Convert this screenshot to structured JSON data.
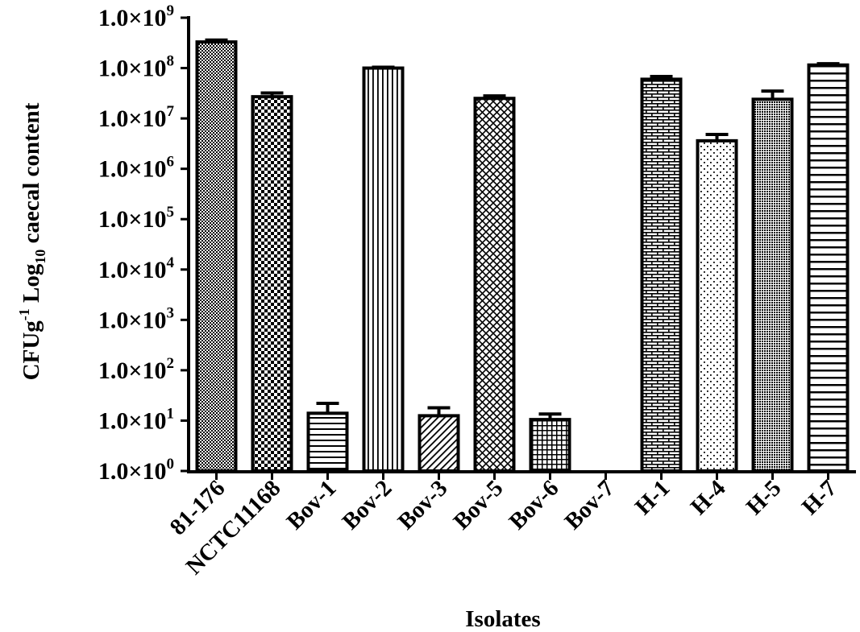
{
  "chart_data": {
    "type": "bar",
    "xlabel": "Isolates",
    "ylabel": {
      "text": "CFUg",
      "sup": "-1",
      "mid": " Log",
      "sub": "10",
      "end": " caecal content"
    },
    "y_scale": "log",
    "ylim": [
      1,
      1000000000
    ],
    "y_ticks": [
      {
        "value": 1,
        "mantissa": "1.0×10",
        "exp": "0"
      },
      {
        "value": 10,
        "mantissa": "1.0×10",
        "exp": "1"
      },
      {
        "value": 100,
        "mantissa": "1.0×10",
        "exp": "2"
      },
      {
        "value": 1000,
        "mantissa": "1.0×10",
        "exp": "3"
      },
      {
        "value": 10000,
        "mantissa": "1.0×10",
        "exp": "4"
      },
      {
        "value": 100000,
        "mantissa": "1.0×10",
        "exp": "5"
      },
      {
        "value": 1000000,
        "mantissa": "1.0×10",
        "exp": "6"
      },
      {
        "value": 10000000,
        "mantissa": "1.0×10",
        "exp": "7"
      },
      {
        "value": 100000000,
        "mantissa": "1.0×10",
        "exp": "8"
      },
      {
        "value": 1000000000,
        "mantissa": "1.0×10",
        "exp": "9"
      }
    ],
    "categories": [
      "81-176",
      "NCTC11168",
      "Bov-1",
      "Bov-2",
      "Bov-3",
      "Bov-5",
      "Bov-6",
      "Bov-7",
      "H-1",
      "H-4",
      "H-5",
      "H-7"
    ],
    "values": [
      330000000,
      27000000,
      14,
      100000000,
      12.5,
      25000000,
      10.5,
      null,
      60000000,
      3600000,
      24000000,
      115000000
    ],
    "error_upper": [
      360000000,
      32000000,
      22,
      104000000,
      18,
      28000000,
      13.5,
      null,
      68000000,
      4800000,
      35000000,
      122000000
    ],
    "patterns": [
      "fine-dots",
      "checker",
      "horizontal-lines",
      "vertical-lines",
      "diagonal-lines",
      "crosshatch",
      "grid",
      "none",
      "brick",
      "sparse-dots",
      "dense-dots",
      "horizontal-lines-wide"
    ],
    "grid": false,
    "legend": "none"
  }
}
